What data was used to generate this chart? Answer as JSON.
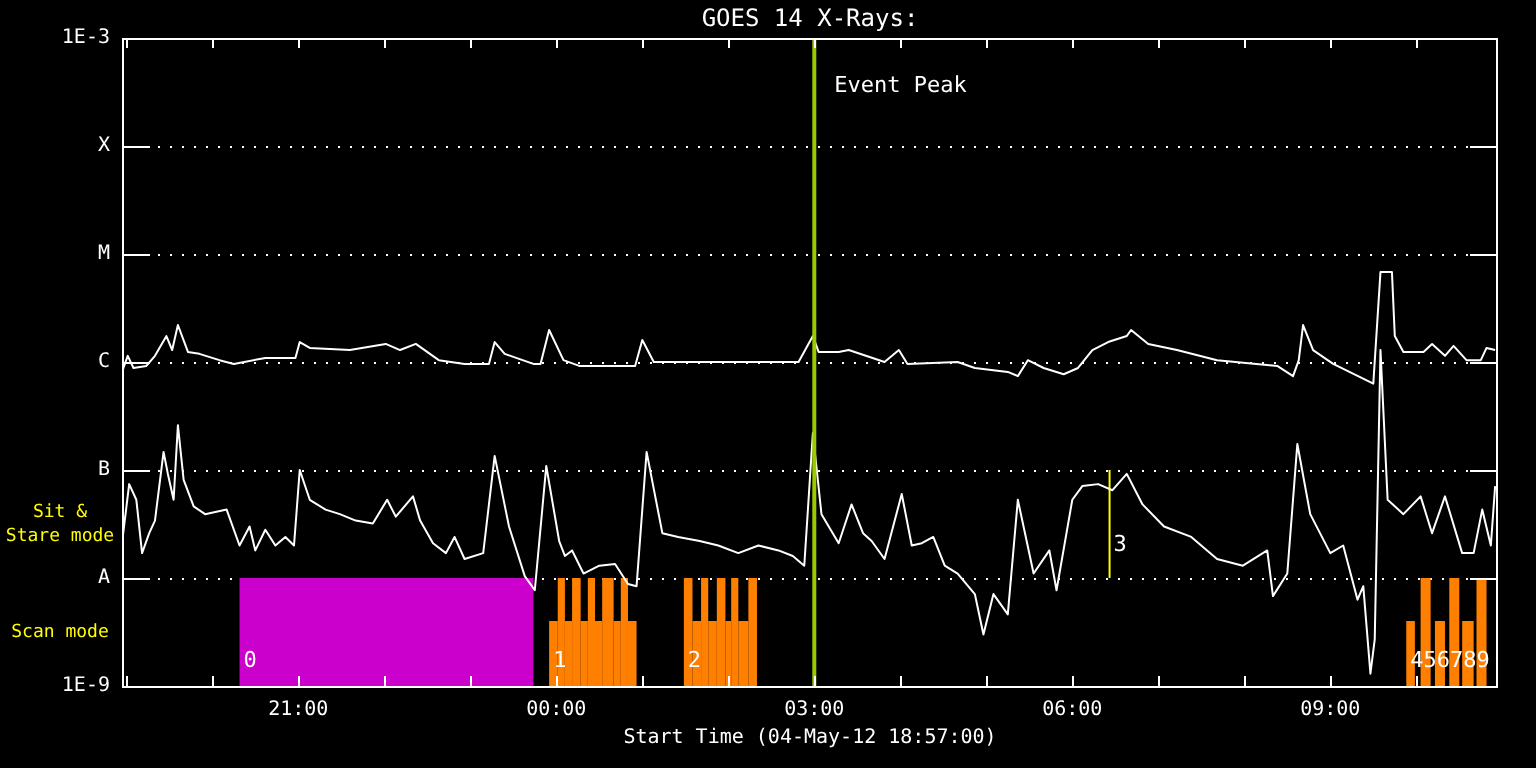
{
  "chart_data": {
    "type": "line",
    "title": "GOES 14 X-Rays:",
    "xlabel": "Start Time (04-May-12 18:57:00)",
    "log": "y",
    "grid": "y",
    "legend": false,
    "marker": "none",
    "line_style": "solid",
    "xlim": [
      "--05-04T18:57",
      "--05-05T10:57"
    ],
    "xticks": [
      {
        "value": "--05-04T19:00",
        "label": null
      },
      {
        "value": "--05-04T20:00",
        "label": null
      },
      {
        "value": "--05-04T21:00",
        "label": "21:00"
      },
      {
        "value": "--05-04T22:00",
        "label": null
      },
      {
        "value": "--05-04T23:00",
        "label": null
      },
      {
        "value": "--05-05T00:00",
        "label": "00:00"
      },
      {
        "value": "--05-05T01:00",
        "label": null
      },
      {
        "value": "--05-05T02:00",
        "label": null
      },
      {
        "value": "--05-05T03:00",
        "label": "03:00"
      },
      {
        "value": "--05-05T04:00",
        "label": null
      },
      {
        "value": "--05-05T05:00",
        "label": null
      },
      {
        "value": "--05-05T06:00",
        "label": "06:00"
      },
      {
        "value": "--05-05T07:00",
        "label": null
      },
      {
        "value": "--05-05T08:00",
        "label": null
      },
      {
        "value": "--05-05T09:00",
        "label": "09:00"
      },
      {
        "value": "--05-05T10:00",
        "label": null
      }
    ],
    "ylim": [
      1e-09,
      0.001
    ],
    "yticks": [
      {
        "value": 1e-09,
        "label": "1E-9"
      },
      {
        "value": 1e-08,
        "label": "A"
      },
      {
        "value": 1e-07,
        "label": "B"
      },
      {
        "value": 1e-06,
        "label": "C"
      },
      {
        "value": 1e-05,
        "label": "M"
      },
      {
        "value": 0.0001,
        "label": "X"
      },
      {
        "value": 0.001,
        "label": "1E-3"
      }
    ],
    "series": [
      {
        "color": "#ffffff",
        "x": [
          "--05-04T18:57",
          "--05-04T19:01",
          "--05-04T19:05",
          "--05-04T19:14",
          "--05-04T19:20",
          "--05-04T19:28",
          "--05-04T19:32",
          "--05-04T19:36",
          "--05-04T19:43",
          "--05-04T19:51",
          "--05-04T20:05",
          "--05-04T20:15",
          "--05-04T20:37",
          "--05-04T20:58",
          "--05-04T21:01",
          "--05-04T21:08",
          "--05-04T21:36",
          "--05-04T22:01",
          "--05-04T22:11",
          "--05-04T22:22",
          "--05-04T22:38",
          "--05-04T22:56",
          "--05-04T23:13",
          "--05-04T23:17",
          "--05-04T23:24",
          "--05-04T23:44",
          "--05-04T23:49",
          "--05-04T23:55",
          "--05-05T00:05",
          "--05-05T00:16",
          "--05-05T00:55",
          "--05-05T01:00",
          "--05-05T01:08",
          "--05-05T01:32",
          "--05-05T02:07",
          "--05-05T02:49",
          "--05-05T02:59",
          "--05-05T03:03",
          "--05-05T03:17",
          "--05-05T03:24",
          "--05-05T03:49",
          "--05-05T03:59",
          "--05-05T04:05",
          "--05-05T04:40",
          "--05-05T04:52",
          "--05-05T05:15",
          "--05-05T05:22",
          "--05-05T05:29",
          "--05-05T05:40",
          "--05-05T05:54",
          "--05-05T06:04",
          "--05-05T06:14",
          "--05-05T06:25",
          "--05-05T06:38",
          "--05-05T06:41",
          "--05-05T06:53",
          "--05-05T07:13",
          "--05-05T07:41",
          "--05-05T08:23",
          "--05-05T08:34",
          "--05-05T08:38",
          "--05-05T08:41",
          "--05-05T08:48",
          "--05-05T09:02",
          "--05-05T09:30",
          "--05-05T09:35",
          "--05-05T09:43",
          "--05-05T09:45",
          "--05-05T09:51",
          "--05-05T10:05",
          "--05-05T10:11",
          "--05-05T10:20",
          "--05-05T10:26",
          "--05-05T10:35",
          "--05-05T10:45",
          "--05-05T10:49",
          "--05-05T10:55"
        ],
        "values": [
          8.1e-07,
          1.14e-06,
          8.8e-07,
          9.2e-07,
          1.14e-06,
          1.74e-06,
          1.29e-06,
          2.2e-06,
          1.24e-06,
          1.19e-06,
          1.04e-06,
          9.6e-07,
          1.09e-06,
          1.09e-06,
          1.53e-06,
          1.35e-06,
          1.29e-06,
          1.47e-06,
          1.29e-06,
          1.47e-06,
          1.04e-06,
          9.6e-07,
          9.6e-07,
          1.53e-06,
          1.19e-06,
          9.6e-07,
          9.6e-07,
          1.98e-06,
          1.04e-06,
          9.2e-07,
          9.2e-07,
          1.6e-06,
          1e-06,
          1e-06,
          1e-06,
          1e-06,
          1.74e-06,
          1.24e-06,
          1.24e-06,
          1.29e-06,
          1e-06,
          1.29e-06,
          9.6e-07,
          1e-06,
          8.8e-07,
          8.1e-07,
          7.4e-07,
          1.04e-06,
          8.8e-07,
          7.7e-07,
          8.8e-07,
          1.29e-06,
          1.53e-06,
          1.74e-06,
          1.98e-06,
          1.47e-06,
          1.29e-06,
          1.04e-06,
          9.2e-07,
          7.4e-07,
          1.04e-06,
          2.2e-06,
          1.29e-06,
          9.6e-07,
          6.3e-07,
          6.8e-06,
          6.8e-06,
          1.74e-06,
          1.24e-06,
          1.24e-06,
          1.47e-06,
          1.14e-06,
          1.41e-06,
          1.04e-06,
          1.04e-06,
          1.35e-06,
          1.29e-06
        ]
      },
      {
        "color": "#ffffff",
        "x": [
          "--05-04T18:57",
          "--05-04T19:02",
          "--05-04T19:07",
          "--05-04T19:11",
          "--05-04T19:16",
          "--05-04T19:20",
          "--05-04T19:26",
          "--05-04T19:29",
          "--05-04T19:33",
          "--05-04T19:36",
          "--05-04T19:40",
          "--05-04T19:47",
          "--05-04T19:55",
          "--05-04T20:10",
          "--05-04T20:19",
          "--05-04T20:26",
          "--05-04T20:30",
          "--05-04T20:37",
          "--05-04T20:44",
          "--05-04T20:51",
          "--05-04T20:57",
          "--05-04T21:01",
          "--05-04T21:08",
          "--05-04T21:19",
          "--05-04T21:29",
          "--05-04T21:40",
          "--05-04T21:52",
          "--05-04T22:02",
          "--05-04T22:08",
          "--05-04T22:20",
          "--05-04T22:25",
          "--05-04T22:34",
          "--05-04T22:43",
          "--05-04T22:49",
          "--05-04T22:56",
          "--05-04T23:09",
          "--05-04T23:17",
          "--05-04T23:27",
          "--05-04T23:38",
          "--05-04T23:45",
          "--05-04T23:53",
          "--05-05T00:02",
          "--05-05T00:06",
          "--05-05T00:11",
          "--05-05T00:19",
          "--05-05T00:30",
          "--05-05T00:41",
          "--05-05T00:50",
          "--05-05T00:56",
          "--05-05T01:03",
          "--05-05T01:14",
          "--05-05T01:25",
          "--05-05T01:40",
          "--05-05T01:53",
          "--05-05T02:07",
          "--05-05T02:21",
          "--05-05T02:35",
          "--05-05T02:45",
          "--05-05T02:53",
          "--05-05T02:59",
          "--05-05T03:05",
          "--05-05T03:17",
          "--05-05T03:26",
          "--05-05T03:34",
          "--05-05T03:40",
          "--05-05T03:49",
          "--05-05T04:01",
          "--05-05T04:08",
          "--05-05T04:15",
          "--05-05T04:23",
          "--05-05T04:31",
          "--05-05T04:40",
          "--05-05T04:52",
          "--05-05T04:58",
          "--05-05T05:05",
          "--05-05T05:15",
          "--05-05T05:22",
          "--05-05T05:33",
          "--05-05T05:44",
          "--05-05T05:49",
          "--05-05T06:00",
          "--05-05T06:07",
          "--05-05T06:18",
          "--05-05T06:28",
          "--05-05T06:38",
          "--05-05T06:49",
          "--05-05T07:04",
          "--05-05T07:23",
          "--05-05T07:41",
          "--05-05T07:59",
          "--05-05T08:16",
          "--05-05T08:20",
          "--05-05T08:30",
          "--05-05T08:37",
          "--05-05T08:46",
          "--05-05T09:00",
          "--05-05T09:09",
          "--05-05T09:19",
          "--05-05T09:23",
          "--05-05T09:28",
          "--05-05T09:31",
          "--05-05T09:35",
          "--05-05T09:40",
          "--05-05T09:51",
          "--05-05T10:03",
          "--05-05T10:11",
          "--05-05T10:20",
          "--05-05T10:32",
          "--05-05T10:40",
          "--05-05T10:46",
          "--05-05T10:52",
          "--05-05T10:55"
        ],
        "values": [
          2.1e-08,
          7.4e-08,
          5.3e-08,
          1.7e-08,
          2.6e-08,
          3.4e-08,
          1.47e-07,
          9.2e-08,
          5.3e-08,
          2.6e-07,
          8.1e-08,
          4.6e-08,
          3.9e-08,
          4.3e-08,
          2e-08,
          3e-08,
          1.8e-08,
          2.8e-08,
          2e-08,
          2.4e-08,
          2e-08,
          1e-07,
          5.3e-08,
          4.3e-08,
          3.9e-08,
          3.4e-08,
          3.2e-08,
          5.3e-08,
          3.7e-08,
          5.7e-08,
          3.4e-08,
          2.1e-08,
          1.7e-08,
          2.4e-08,
          1.5e-08,
          1.7e-08,
          1.35e-07,
          3e-08,
          1.04e-08,
          7.7e-09,
          1.09e-07,
          2.2e-08,
          1.6e-08,
          1.8e-08,
          1.1e-08,
          1.3e-08,
          1.35e-08,
          8.8e-09,
          8.4e-09,
          1.47e-07,
          2.6e-08,
          2.4e-08,
          2.2e-08,
          2e-08,
          1.7e-08,
          2e-08,
          1.8e-08,
          1.6e-08,
          1.3e-08,
          2.2e-07,
          3.9e-08,
          2.1e-08,
          4.8e-08,
          2.6e-08,
          2.2e-08,
          1.5e-08,
          6e-08,
          2e-08,
          2.1e-08,
          2.4e-08,
          1.3e-08,
          1.1e-08,
          7.1e-09,
          3e-09,
          7.1e-09,
          4.6e-09,
          5.3e-08,
          1.1e-08,
          1.8e-08,
          7.7e-09,
          5.3e-08,
          7.1e-08,
          7.4e-08,
          6.5e-08,
          9.2e-08,
          4.8e-08,
          3e-08,
          2.4e-08,
          1.5e-08,
          1.3e-08,
          1.8e-08,
          6.8e-09,
          1.1e-08,
          1.74e-07,
          3.9e-08,
          1.7e-08,
          2e-08,
          6.3e-09,
          8.4e-09,
          1.3e-09,
          2.7e-09,
          1.29e-06,
          5.3e-08,
          3.9e-08,
          5.7e-08,
          2.6e-08,
          5.7e-08,
          1.7e-08,
          1.7e-08,
          4.3e-08,
          2e-08,
          7.1e-08
        ]
      },
      {
        "type": "histogram",
        "color": "#cc00cc",
        "bins": [
          "--05-04T20:19",
          "--05-04T23:44"
        ],
        "values": [
          1e-08
        ]
      },
      {
        "type": "histogram",
        "color": "#ff8000",
        "bins": [
          "--05-04T23:55",
          "--05-05T00:01",
          "--05-05T00:06",
          "--05-05T00:11",
          "--05-05T00:17",
          "--05-05T00:22",
          "--05-05T00:27",
          "--05-05T00:32",
          "--05-05T00:40",
          "--05-05T00:45",
          "--05-05T00:50",
          "--05-05T00:56",
          "--05-05T01:29",
          "--05-05T01:35",
          "--05-05T01:41",
          "--05-05T01:46",
          "--05-05T01:52",
          "--05-05T01:58",
          "--05-05T02:02",
          "--05-05T02:07",
          "--05-05T02:14",
          "--05-05T02:20",
          "--05-05T09:53",
          "--05-05T09:59",
          "--05-05T10:03",
          "--05-05T10:10",
          "--05-05T10:13",
          "--05-05T10:20",
          "--05-05T10:23",
          "--05-05T10:30",
          "--05-05T10:32",
          "--05-05T10:40",
          "--05-05T10:42",
          "--05-05T10:49"
        ],
        "values": [
          4e-09,
          1e-08,
          4e-09,
          1e-08,
          4e-09,
          1e-08,
          4e-09,
          1e-08,
          4e-09,
          1e-08,
          4e-09,
          null,
          1e-08,
          4e-09,
          1e-08,
          4e-09,
          1e-08,
          4e-09,
          1e-08,
          4e-09,
          1e-08,
          null,
          4e-09,
          null,
          1e-08,
          null,
          4e-09,
          null,
          1e-08,
          null,
          4e-09,
          null,
          1e-08
        ]
      },
      {
        "color": "#ffff00",
        "x": [
          "--05-05T06:26",
          "--05-05T06:26"
        ],
        "values": [
          1e-08,
          1e-07
        ]
      }
    ],
    "ref_lines": [
      {
        "axis": "x",
        "value": "--05-05T03:00",
        "label": "Event Peak",
        "color": "#99cc00"
      }
    ],
    "annotations": [
      "Sit & Stare mode",
      "Scan mode",
      {
        "text": "0",
        "x": "--05-04T20:19",
        "y": 1.7e-09
      },
      {
        "text": "1",
        "x": "--05-04T23:55",
        "y": 1.7e-09
      },
      {
        "text": "2",
        "x": "--05-05T01:29",
        "y": 1.7e-09
      },
      {
        "text": "3",
        "x": "--05-05T06:26",
        "y": 2e-08
      },
      {
        "text": "456789",
        "x": "--05-05T09:53",
        "y": 1.7e-09
      }
    ]
  }
}
